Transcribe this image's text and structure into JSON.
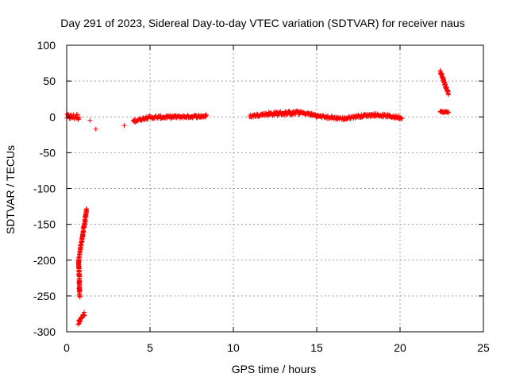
{
  "chart_data": {
    "type": "scatter",
    "title": "Day 291 of 2023, Sidereal Day-to-day VTEC variation (SDTVAR) for receiver naus",
    "xlabel": "GPS time / hours",
    "ylabel": "SDTVAR / TECUs",
    "xlim": [
      0,
      25
    ],
    "ylim": [
      -300,
      100
    ],
    "xticks": [
      0,
      5,
      10,
      15,
      20,
      25
    ],
    "xtick_labels": [
      "0",
      "5",
      "10",
      "15",
      "20",
      "25"
    ],
    "yticks": [
      -300,
      -250,
      -200,
      -150,
      -100,
      -50,
      0,
      50,
      100
    ],
    "ytick_labels": [
      "-300",
      "-250",
      "-200",
      "-150",
      "-100",
      "-50",
      "0",
      "50",
      "100"
    ],
    "grid": true,
    "marker": "+",
    "colors": {
      "series": "#ff0000",
      "grid": "#a0a0a0",
      "axis": "#000000"
    },
    "series": [
      {
        "name": "SDTVAR",
        "segments": [
          {
            "x": [
              0.0,
              0.75
            ],
            "y": [
              0,
              0
            ],
            "amp": 4
          },
          {
            "x": [
              0.72,
              1.2
            ],
            "y": [
              -200,
              -130
            ],
            "amp": 3
          },
          {
            "x": [
              0.72,
              0.78
            ],
            "y": [
              -200,
              -250
            ],
            "amp": 2
          },
          {
            "x": [
              0.7,
              1.05
            ],
            "y": [
              -288,
              -275
            ],
            "amp": 3
          },
          {
            "x": [
              4.0,
              4.8
            ],
            "y": [
              -6,
              -1
            ],
            "amp": 2
          },
          {
            "x": [
              4.8,
              8.4
            ],
            "y": [
              -1,
              1
            ],
            "amp": 2
          },
          {
            "x": [
              11.0,
              12.0
            ],
            "y": [
              1,
              4
            ],
            "amp": 2
          },
          {
            "x": [
              12.0,
              14.0
            ],
            "y": [
              4,
              6
            ],
            "amp": 3
          },
          {
            "x": [
              14.0,
              15.0
            ],
            "y": [
              6,
              2
            ],
            "amp": 2
          },
          {
            "x": [
              15.0,
              16.4
            ],
            "y": [
              1,
              -2
            ],
            "amp": 2
          },
          {
            "x": [
              16.5,
              17.5
            ],
            "y": [
              -3,
              1
            ],
            "amp": 2
          },
          {
            "x": [
              17.5,
              18.5
            ],
            "y": [
              1,
              3
            ],
            "amp": 2
          },
          {
            "x": [
              18.5,
              20.1
            ],
            "y": [
              3,
              -1
            ],
            "amp": 2
          },
          {
            "x": [
              22.4,
              22.9
            ],
            "y": [
              64,
              32
            ],
            "amp": 2
          },
          {
            "x": [
              22.4,
              22.9
            ],
            "y": [
              7,
              7
            ],
            "amp": 1
          }
        ],
        "points": [
          {
            "x": 1.4,
            "y": -5
          },
          {
            "x": 1.75,
            "y": -17
          },
          {
            "x": 3.45,
            "y": -12
          }
        ]
      }
    ]
  }
}
